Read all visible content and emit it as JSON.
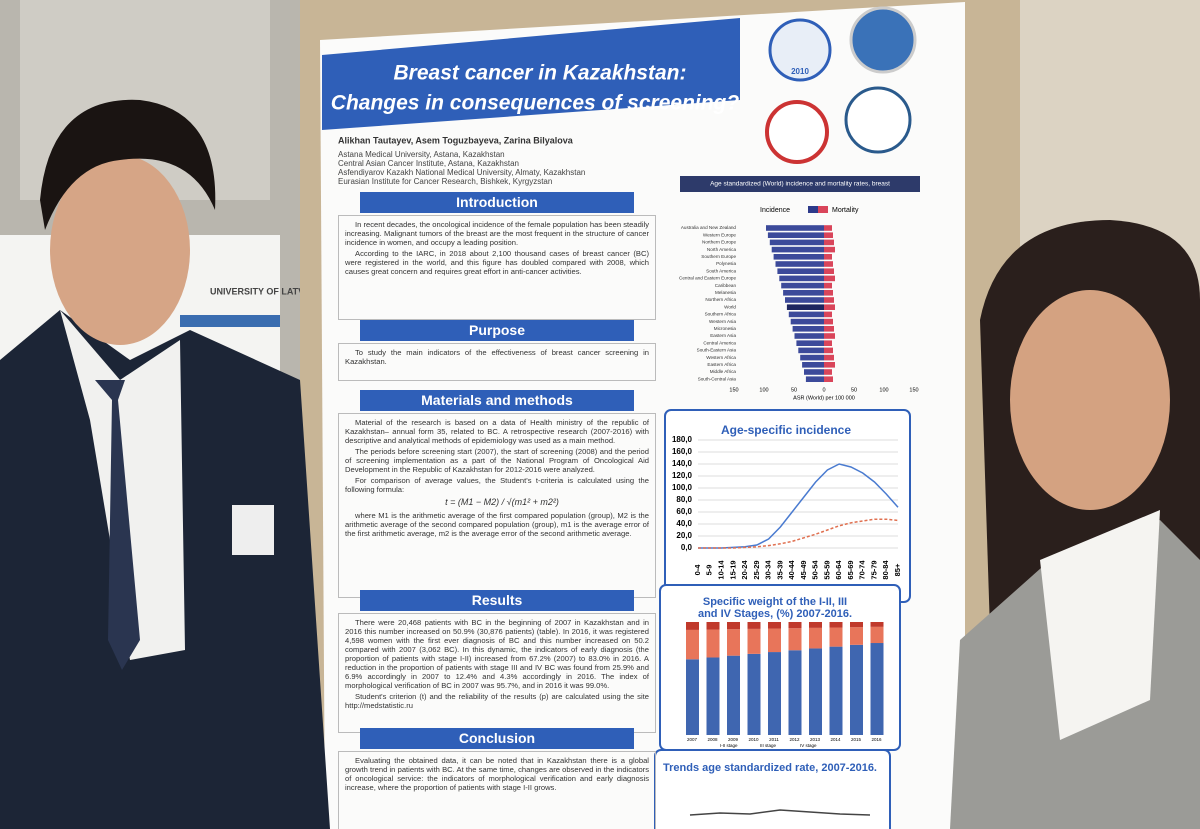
{
  "poster": {
    "title": [
      "Breast cancer in Kazakhstan:",
      "Changes in consequences of screening?"
    ],
    "authors": "Alikhan Tautayev, Asem Toguzbayeva, Zarina Bilyalova",
    "affiliations": [
      "Astana Medical University, Astana, Kazakhstan",
      "Central Asian Cancer Institute, Astana, Kazakhstan",
      "Asfendiyarov Kazakh National Medical University, Almaty, Kazakhstan",
      "Eurasian Institute for Cancer Research, Bishkek, Kyrgyzstan"
    ],
    "logo": "2010",
    "sections": [
      {
        "heading": "Introduction",
        "text": [
          "In recent decades, the oncological incidence of the female population has been steadily increasing. Malignant tumors of the breast are the most frequent in the structure of cancer incidence in women, and occupy a leading position.",
          "According to the IARC, in 2018 about 2,100 thousand cases of breast cancer (BC) were registered in the world, and this figure has doubled compared with 2008, which causes great concern and requires great effort in anti-cancer activities."
        ]
      },
      {
        "heading": "Purpose",
        "text": [
          "To study the main indicators of the effectiveness of breast cancer screening in Kazakhstan."
        ]
      },
      {
        "heading": "Materials and methods",
        "text": [
          "Material of the research is based on a data of Health ministry of the republic of Kazakhstan– annual form 35, related to BC. A retrospective research (2007-2016) with descriptive and analytical methods of epidemiology was used as a main method.",
          "The periods before screening start (2007), the start of screening (2008) and the period of screening implementation as a part of the National Program of Oncological Aid Development in the Republic of Kazakhstan for 2012-2016 were analyzed.",
          "For comparison of average values, the Student's t-criteria is calculated using the following formula:",
          "where M1 is the arithmetic average of the first compared population (group), M2 is the arithmetic average of the second compared population (group), m1 is the average error of the first arithmetic average, m2 is the average error of the second arithmetic average."
        ]
      },
      {
        "heading": "Results",
        "text": [
          "There were 20,468 patients with BC in the beginning of 2007 in Kazakhstan and in 2016 this number increased on 50.9% (30,876 patients) (table). In 2016, it was registered 4,598 women with the first ever diagnosis of BC and this number increased on 50.2 compared with 2007 (3,062 BC). In this dynamic, the indicators of early diagnosis (the proportion of patients with stage I-II) increased from 67.2% (2007) to 83.0% in 2016. A reduction in the proportion of patients with stage III and IV BC was found from 25.9% and 6.9% accordingly in 2007 to 12.4% and 4.3% accordingly in 2016. The index of morphological verification of BC in 2007 was 95.7%, and in 2016 it was 99.0%.",
          "Student's criterion (t) and the reliability of the results (p) are calculated using the site http://medstatistic.ru"
        ]
      },
      {
        "heading": "Conclusion",
        "text": [
          "Evaluating the obtained data, it can be noted that in Kazakhstan there is a global growth trend in patients with BC. At the same time, changes are observed in the indicators of oncological service: the indicators of morphological verification and early diagnosis increase, where the proportion of patients with stage I-II grows."
        ]
      }
    ],
    "formula": "t = (M1 − M2) / √(m1² + m2²)",
    "world_chart": {
      "title": "Age standardized (World) incidence and mortality rates, breast",
      "legend": [
        "Incidence",
        "Mortality"
      ],
      "xlabel": "ASR (World) per 100 000",
      "regions": [
        "Australia and New Zealand",
        "Western Europe",
        "Northern Europe",
        "North America",
        "Southern Europe",
        "Polynesia",
        "South America",
        "Central and Eastern Europe",
        "Caribbean",
        "Melanesia",
        "Northern Africa",
        "World",
        "Southern Africa",
        "Western Asia",
        "Micronesia",
        "Eastern Asia",
        "Central America",
        "South-Eastern Asia",
        "Western Africa",
        "Eastern Africa",
        "Middle Africa",
        "South-Central Asia"
      ],
      "xticks": [
        "150",
        "100",
        "50",
        "0",
        "50",
        "100",
        "150"
      ]
    },
    "age_chart": {
      "title": "Age-specific incidence",
      "yticks": [
        "180,0",
        "160,0",
        "140,0",
        "120,0",
        "100,0",
        "80,0",
        "60,0",
        "40,0",
        "20,0",
        "0,0"
      ],
      "categories": [
        "0-4",
        "5-9",
        "10-14",
        "15-19",
        "20-24",
        "25-29",
        "30-34",
        "35-39",
        "40-44",
        "45-49",
        "50-54",
        "55-59",
        "60-64",
        "65-69",
        "70-74",
        "75-79",
        "80-84",
        "85+"
      ]
    },
    "stage_chart": {
      "title": [
        "Specific weight of the I-II, III",
        "and IV Stages, (%) 2007-2016."
      ],
      "years": [
        "2007",
        "2008",
        "2009",
        "2010",
        "2011",
        "2012",
        "2013",
        "2014",
        "2015",
        "2016"
      ],
      "legend": [
        "I-II stage",
        "III stage",
        "IV stage"
      ]
    },
    "trend_chart": {
      "title": "Trends age standardized rate, 2007-2016."
    }
  },
  "background_poster": {
    "logo": "UNIVERSITY OF LATVIA"
  }
}
